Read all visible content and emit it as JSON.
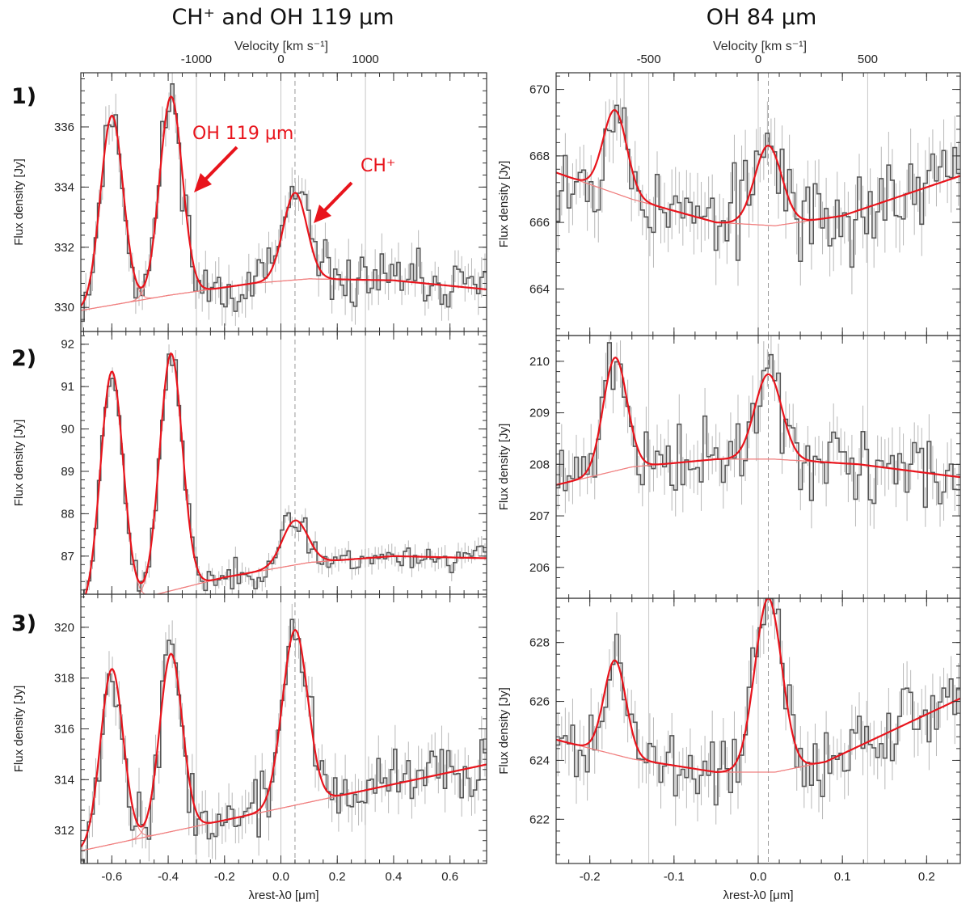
{
  "columns": [
    {
      "title": "CH⁺ and OH 119 μm",
      "velocity_axis_label": "Velocity [km s⁻¹]"
    },
    {
      "title": "OH 84 μm",
      "velocity_axis_label": "Velocity [km s⁻¹]"
    }
  ],
  "row_labels": [
    "1)",
    "2)",
    "3)"
  ],
  "annotations": {
    "oh119": "OH 119 μm",
    "chp": "CH⁺"
  },
  "colors": {
    "model": "#e8141c",
    "component": "#f08080",
    "data": "#555555",
    "errorbar": "#b8b8b8",
    "grid": "#c8c8c8"
  },
  "chart_data": [
    {
      "type": "line",
      "panel": "1) CH⁺ and OH 119 μm",
      "xlabel": "λrest-λ0 [μm]",
      "ylabel": "Flux density [Jy]",
      "xlim": [
        -0.71,
        0.73
      ],
      "ylim": [
        329.2,
        337.8
      ],
      "xticks": [
        -0.6,
        -0.4,
        -0.2,
        0.0,
        0.2,
        0.4,
        0.6
      ],
      "yticks": [
        330,
        332,
        334,
        336
      ],
      "top_axis": {
        "label": "Velocity [km s⁻¹]",
        "ticks": [
          -1000,
          0,
          1000
        ],
        "tick_positions_um": [
          -0.3,
          0.0,
          0.3
        ],
        "zero_velocity_um": 0.05
      },
      "continuum": [
        [
          -0.71,
          329.9
        ],
        [
          -0.4,
          330.4
        ],
        [
          -0.1,
          330.8
        ],
        [
          0.1,
          330.95
        ],
        [
          0.4,
          330.9
        ],
        [
          0.73,
          330.6
        ]
      ],
      "gaussians": [
        {
          "center": -0.6,
          "amp": 6.3,
          "sigma": 0.04
        },
        {
          "center": -0.39,
          "amp": 6.6,
          "sigma": 0.04
        },
        {
          "center": 0.05,
          "amp": 2.9,
          "sigma": 0.042
        }
      ],
      "noise": 0.8,
      "seed": 11
    },
    {
      "type": "line",
      "panel": "2) CH⁺ and OH 119 μm",
      "xlabel": "λrest-λ0 [μm]",
      "ylabel": "Flux density [Jy]",
      "xlim": [
        -0.71,
        0.73
      ],
      "ylim": [
        86.1,
        92.3
      ],
      "xticks": [
        -0.6,
        -0.4,
        -0.2,
        0.0,
        0.2,
        0.4,
        0.6
      ],
      "yticks": [
        87,
        88,
        89,
        90,
        91,
        92
      ],
      "continuum": [
        [
          -0.71,
          85.7
        ],
        [
          -0.5,
          86.0
        ],
        [
          -0.2,
          86.5
        ],
        [
          0.1,
          86.85
        ],
        [
          0.4,
          87.0
        ],
        [
          0.73,
          86.95
        ]
      ],
      "gaussians": [
        {
          "center": -0.6,
          "amp": 5.5,
          "sigma": 0.04
        },
        {
          "center": -0.39,
          "amp": 5.6,
          "sigma": 0.04
        },
        {
          "center": 0.05,
          "amp": 1.05,
          "sigma": 0.045
        }
      ],
      "noise": 0.3,
      "seed": 23
    },
    {
      "type": "line",
      "panel": "3) CH⁺ and OH 119 μm",
      "xlabel": "λrest-λ0 [μm]",
      "ylabel": "Flux density [Jy]",
      "xlim": [
        -0.71,
        0.73
      ],
      "ylim": [
        310.7,
        321.3
      ],
      "xticks": [
        -0.6,
        -0.4,
        -0.2,
        0.0,
        0.2,
        0.4,
        0.6
      ],
      "yticks": [
        312,
        314,
        316,
        318,
        320
      ],
      "continuum": [
        [
          -0.71,
          311.2
        ],
        [
          0.73,
          314.6
        ]
      ],
      "gaussians": [
        {
          "center": -0.6,
          "amp": 6.9,
          "sigma": 0.04
        },
        {
          "center": -0.39,
          "amp": 7.0,
          "sigma": 0.04
        },
        {
          "center": 0.05,
          "amp": 6.9,
          "sigma": 0.045
        }
      ],
      "noise": 1.1,
      "seed": 37
    },
    {
      "type": "line",
      "panel": "1) OH 84 μm",
      "xlabel": "λrest-λ0 [μm]",
      "ylabel": "Flux density [Jy]",
      "xlim": [
        -0.24,
        0.24
      ],
      "ylim": [
        662.6,
        670.5
      ],
      "xticks": [
        -0.2,
        -0.1,
        0.0,
        0.1,
        0.2
      ],
      "yticks": [
        664,
        666,
        668,
        670
      ],
      "top_axis": {
        "label": "Velocity [km s⁻¹]",
        "ticks": [
          -500,
          0,
          500
        ],
        "tick_positions_um": [
          -0.13,
          0.0,
          0.13
        ],
        "zero_velocity_um": 0.012
      },
      "continuum": [
        [
          -0.24,
          667.5
        ],
        [
          -0.15,
          666.7
        ],
        [
          -0.05,
          666.0
        ],
        [
          0.02,
          665.9
        ],
        [
          0.1,
          666.2
        ],
        [
          0.24,
          667.4
        ]
      ],
      "gaussians": [
        {
          "center": -0.17,
          "amp": 2.5,
          "sigma": 0.014
        },
        {
          "center": 0.012,
          "amp": 2.4,
          "sigma": 0.016
        }
      ],
      "noise": 1.2,
      "seed": 53
    },
    {
      "type": "line",
      "panel": "2) OH 84 μm",
      "xlabel": "λrest-λ0 [μm]",
      "ylabel": "Flux density [Jy]",
      "xlim": [
        -0.24,
        0.24
      ],
      "ylim": [
        205.4,
        210.5
      ],
      "xticks": [
        -0.2,
        -0.1,
        0.0,
        0.1,
        0.2
      ],
      "yticks": [
        206,
        207,
        208,
        209,
        210
      ],
      "continuum": [
        [
          -0.24,
          207.6
        ],
        [
          -0.15,
          207.95
        ],
        [
          -0.05,
          208.1
        ],
        [
          0.02,
          208.1
        ],
        [
          0.12,
          208.0
        ],
        [
          0.24,
          207.75
        ]
      ],
      "gaussians": [
        {
          "center": -0.17,
          "amp": 2.2,
          "sigma": 0.014
        },
        {
          "center": 0.012,
          "amp": 1.65,
          "sigma": 0.016
        }
      ],
      "noise": 0.65,
      "seed": 71
    },
    {
      "type": "line",
      "panel": "3) OH 84 μm",
      "xlabel": "λrest-λ0 [μm]",
      "ylabel": "Flux density [Jy]",
      "xlim": [
        -0.24,
        0.24
      ],
      "ylim": [
        620.5,
        629.5
      ],
      "xticks": [
        -0.2,
        -0.1,
        0.0,
        0.1,
        0.2
      ],
      "yticks": [
        622,
        624,
        626,
        628
      ],
      "continuum": [
        [
          -0.24,
          624.7
        ],
        [
          -0.15,
          624.05
        ],
        [
          -0.05,
          623.6
        ],
        [
          0.02,
          623.6
        ],
        [
          0.08,
          623.95
        ],
        [
          0.24,
          626.1
        ]
      ],
      "gaussians": [
        {
          "center": -0.17,
          "amp": 3.2,
          "sigma": 0.013
        },
        {
          "center": 0.012,
          "amp": 5.9,
          "sigma": 0.016
        }
      ],
      "noise": 1.2,
      "seed": 89
    }
  ]
}
